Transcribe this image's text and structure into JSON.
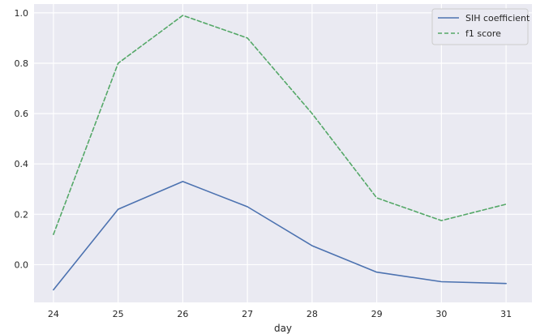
{
  "chart_data": {
    "type": "line",
    "title": "",
    "xlabel": "day",
    "ylabel": "",
    "x": [
      24,
      25,
      26,
      27,
      28,
      29,
      30,
      31
    ],
    "xticks": [
      "24",
      "25",
      "26",
      "27",
      "28",
      "29",
      "30",
      "31"
    ],
    "yticks": [
      "0.0",
      "0.2",
      "0.4",
      "0.6",
      "0.8",
      "1.0"
    ],
    "xlim": [
      23.7,
      31.4
    ],
    "ylim": [
      -0.15,
      1.035
    ],
    "grid": true,
    "legend_position": "top-right",
    "background": "#eaeaf2",
    "series": [
      {
        "name": "SIH coefficient",
        "values": [
          -0.1,
          0.22,
          0.33,
          0.23,
          0.075,
          -0.03,
          -0.068,
          -0.075
        ],
        "color": "#4c72b0",
        "style": "solid"
      },
      {
        "name": "f1 score",
        "values": [
          0.12,
          0.8,
          0.99,
          0.9,
          0.6,
          0.265,
          0.175,
          0.24
        ],
        "color": "#55a868",
        "style": "dashed"
      }
    ]
  }
}
